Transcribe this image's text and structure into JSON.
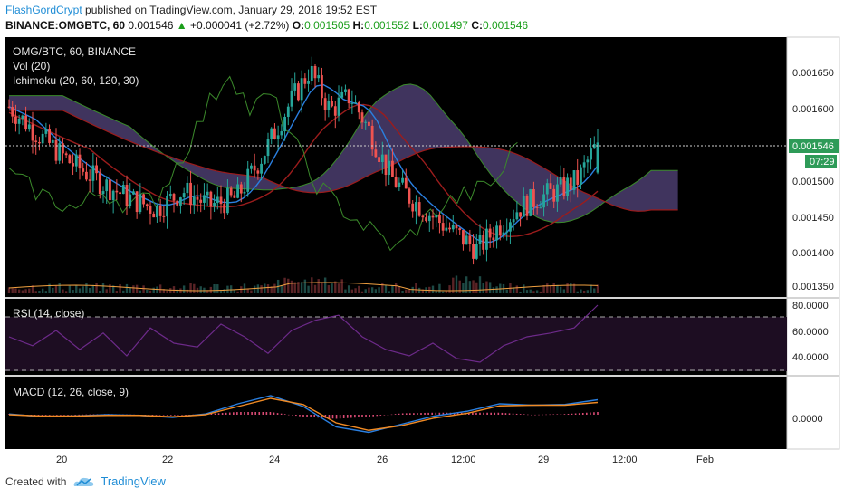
{
  "header": {
    "author": "FlashGordCrypt",
    "published_text": "published on TradingView.com, January 29, 2018 19:52 EST",
    "symbol": "BINANCE:OMGBTC, 60",
    "last": "0.001546",
    "change": "+0.000041 (+2.72%)",
    "open_label": "O:",
    "open": "0.001505",
    "high_label": "H:",
    "high": "0.001552",
    "low_label": "L:",
    "low": "0.001497",
    "close_label": "C:",
    "close": "0.001546"
  },
  "legend": {
    "title": "OMG/BTC, 60, BINANCE",
    "volume": "Vol (20)",
    "ichimoku": "Ichimoku (20, 60, 120, 30)",
    "rsi": "RSI (14, close)",
    "macd": "MACD (12, 26, close, 9)"
  },
  "price_axis": {
    "ticks": [
      "0.001650",
      "0.001600",
      "0.001500",
      "0.001450",
      "0.001400",
      "0.001350"
    ],
    "last_price_label": "0.001546",
    "countdown": "07:29"
  },
  "rsi_axis": {
    "ticks": [
      "80.0000",
      "60.0000",
      "40.0000"
    ]
  },
  "macd_axis": {
    "ticks": [
      "0.0000"
    ]
  },
  "time_axis": {
    "ticks": [
      "20",
      "22",
      "24",
      "26",
      "12:00",
      "29",
      "12:00",
      "Feb"
    ]
  },
  "footer": {
    "created_with": "Created with",
    "brand": "TradingView"
  },
  "colors": {
    "up": "#26a69a",
    "down": "#ef5350",
    "kumo_bull": "#4f7a1f",
    "kumo_bear": "#5b4a86",
    "tenkan": "#2a7fe0",
    "kijun": "#9b1c1c",
    "chikou": "#3b8a2b",
    "rsi": "#6d2a8a"
  },
  "chart_data": [
    {
      "type": "candlestick",
      "title": "OMG/BTC, 60, BINANCE",
      "ylim": [
        0.001335,
        0.00169
      ],
      "last_price": 0.001546,
      "ohlc_last": {
        "open": 0.001505,
        "high": 0.001552,
        "low": 0.001497,
        "close": 0.001546
      },
      "close_path": [
        {
          "t": 0,
          "v": 0.001595
        },
        {
          "t": 4,
          "v": 0.00156
        },
        {
          "t": 9,
          "v": 0.00152
        },
        {
          "t": 14,
          "v": 0.00149
        },
        {
          "t": 18,
          "v": 0.00147
        },
        {
          "t": 22,
          "v": 0.001455
        },
        {
          "t": 26,
          "v": 0.00148
        },
        {
          "t": 30,
          "v": 0.00146
        },
        {
          "t": 34,
          "v": 0.00147
        },
        {
          "t": 38,
          "v": 0.00153
        },
        {
          "t": 42,
          "v": 0.0016
        },
        {
          "t": 45,
          "v": 0.001645
        },
        {
          "t": 48,
          "v": 0.00159
        },
        {
          "t": 51,
          "v": 0.00161
        },
        {
          "t": 54,
          "v": 0.00156
        },
        {
          "t": 57,
          "v": 0.0015
        },
        {
          "t": 60,
          "v": 0.00147
        },
        {
          "t": 64,
          "v": 0.00144
        },
        {
          "t": 67,
          "v": 0.00142
        },
        {
          "t": 70,
          "v": 0.0014
        },
        {
          "t": 73,
          "v": 0.00143
        },
        {
          "t": 76,
          "v": 0.001455
        },
        {
          "t": 79,
          "v": 0.00147
        },
        {
          "t": 82,
          "v": 0.00148
        },
        {
          "t": 85,
          "v": 0.001495
        },
        {
          "t": 88,
          "v": 0.001546
        }
      ]
    },
    {
      "type": "line",
      "title": "RSI (14, close)",
      "ylim": [
        25,
        85
      ],
      "bands": [
        70,
        30
      ],
      "values": [
        55,
        48,
        60,
        45,
        58,
        40,
        62,
        50,
        47,
        65,
        55,
        42,
        60,
        68,
        72,
        55,
        45,
        40,
        50,
        38,
        35,
        48,
        55,
        58,
        62,
        80
      ]
    },
    {
      "type": "line",
      "title": "MACD (12, 26, close, 9)",
      "macd": [
        0.1,
        -0.3,
        -0.2,
        0.0,
        -0.1,
        -0.4,
        0.1,
        1.6,
        2.8,
        1.2,
        -1.8,
        -2.6,
        -1.4,
        -0.2,
        0.5,
        1.6,
        1.4,
        1.5,
        2.2
      ],
      "signal": [
        0.0,
        -0.2,
        -0.2,
        -0.1,
        -0.1,
        -0.3,
        0.0,
        1.2,
        2.4,
        1.5,
        -1.2,
        -2.3,
        -1.6,
        -0.5,
        0.2,
        1.3,
        1.4,
        1.4,
        1.8
      ]
    }
  ]
}
